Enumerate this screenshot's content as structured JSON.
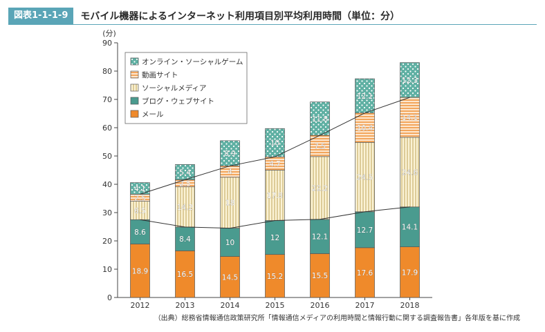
{
  "figure": {
    "label": "図表1-1-1-9",
    "title": "モバイル機器によるインターネット利用項目別平均利用時間（単位：分）",
    "source": "（出典）総務省情報通信政策研究所「情報通信メディアの利用時間と情報行動に関する調査報告書」各年版を基に作成"
  },
  "chart_data": {
    "type": "bar",
    "stacked": true,
    "unit_label": "(分)",
    "categories": [
      "2012",
      "2013",
      "2014",
      "2015",
      "2016",
      "2017",
      "2018"
    ],
    "ylim": [
      0,
      90
    ],
    "yticks": [
      0,
      10,
      20,
      30,
      40,
      50,
      60,
      70,
      80,
      90
    ],
    "grid": false,
    "legend_position": "top-left",
    "series": [
      {
        "name": "メール",
        "values": [
          18.9,
          16.5,
          14.5,
          15.2,
          15.5,
          17.6,
          17.9
        ],
        "color": "#ef8a2b",
        "pattern": "solid"
      },
      {
        "name": "ブログ・ウェブサイト",
        "values": [
          8.6,
          8.4,
          10,
          12,
          12.1,
          12.7,
          14.1
        ],
        "color": "#4a9b8f",
        "pattern": "solid"
      },
      {
        "name": "ソーシャルメディア",
        "values": [
          6.5,
          14.2,
          18,
          17.8,
          22.2,
          24.5,
          24.6
        ],
        "color": "#c9a84a",
        "pattern": "vstripes"
      },
      {
        "name": "動画サイト",
        "values": [
          2.5,
          2.5,
          4,
          4.7,
          7.5,
          10.4,
          14.1
        ],
        "color": "#ef8a2b",
        "pattern": "hstripes"
      },
      {
        "name": "オンライン・ソーシャルゲーム",
        "values": [
          4.1,
          5.4,
          8.9,
          10,
          11.8,
          12.1,
          12.3
        ],
        "color": "#5fb0a3",
        "pattern": "dots"
      }
    ],
    "legend_order": [
      "オンライン・ソーシャルゲーム",
      "動画サイト",
      "ソーシャルメディア",
      "ブログ・ウェブサイト",
      "メール"
    ]
  }
}
